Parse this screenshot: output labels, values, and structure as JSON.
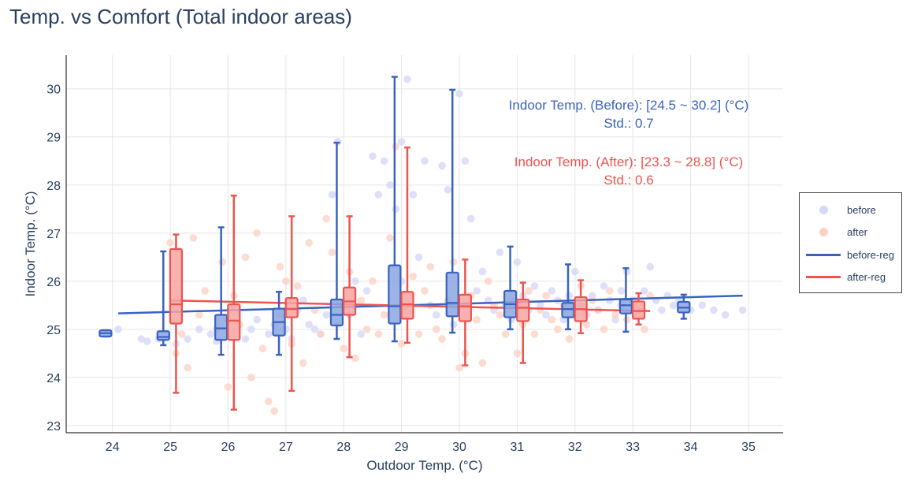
{
  "chart_data": {
    "type": "scatter",
    "title": "Temp. vs Comfort (Total indoor areas)",
    "xlabel": "Outdoor Temp. (°C)",
    "ylabel": "Indoor Temp. (°C)",
    "xlim": [
      23.2,
      35.6
    ],
    "ylim": [
      22.85,
      30.7
    ],
    "x_ticks": [
      24,
      25,
      26,
      27,
      28,
      29,
      30,
      31,
      32,
      33,
      34,
      35
    ],
    "y_ticks": [
      23,
      24,
      25,
      26,
      27,
      28,
      29,
      30
    ],
    "grid": true,
    "legend": {
      "placement": "right",
      "entries": [
        {
          "name": "before",
          "kind": "marker",
          "color": "#d6d8f7"
        },
        {
          "name": "after",
          "kind": "marker",
          "color": "#fbd2c4"
        },
        {
          "name": "before-reg",
          "kind": "line",
          "color": "#3a62bf"
        },
        {
          "name": "after-reg",
          "kind": "line",
          "color": "#ef5350"
        }
      ]
    },
    "annotations": [
      {
        "line1": "Indoor Temp. (Before): [24.5 ~ 30.2] (°C)",
        "line2": "Std.: 0.7",
        "color": "#3a62bf"
      },
      {
        "line1": "Indoor Temp. (After): [23.3 ~ 28.8] (°C)",
        "line2": "Std.: 0.6",
        "color": "#ef5350"
      }
    ],
    "series": [
      {
        "name": "before",
        "type": "scatter",
        "color": "#d6d8f7",
        "points": [
          [
            24.1,
            25.0
          ],
          [
            24.5,
            24.8
          ],
          [
            24.6,
            24.75
          ],
          [
            24.8,
            24.8
          ],
          [
            25.1,
            24.7
          ],
          [
            25.3,
            24.8
          ],
          [
            25.5,
            25.0
          ],
          [
            25.7,
            24.9
          ],
          [
            25.8,
            24.75
          ],
          [
            26.0,
            25.2
          ],
          [
            26.1,
            25.5
          ],
          [
            26.3,
            24.8
          ],
          [
            26.4,
            25.0
          ],
          [
            26.5,
            25.2
          ],
          [
            26.7,
            24.9
          ],
          [
            26.8,
            25.1
          ],
          [
            26.9,
            25.3
          ],
          [
            27.0,
            25.0
          ],
          [
            27.1,
            24.8
          ],
          [
            27.2,
            25.4
          ],
          [
            27.3,
            25.6
          ],
          [
            27.4,
            25.1
          ],
          [
            27.5,
            25.0
          ],
          [
            27.6,
            24.9
          ],
          [
            27.7,
            25.3
          ],
          [
            27.8,
            27.8
          ],
          [
            27.9,
            28.9
          ],
          [
            28.0,
            25.5
          ],
          [
            28.1,
            25.3
          ],
          [
            28.2,
            26.0
          ],
          [
            28.3,
            24.9
          ],
          [
            28.4,
            25.8
          ],
          [
            28.5,
            28.6
          ],
          [
            28.6,
            27.8
          ],
          [
            28.7,
            28.5
          ],
          [
            28.8,
            28.0
          ],
          [
            28.9,
            27.5
          ],
          [
            29.0,
            28.9
          ],
          [
            29.0,
            26.0
          ],
          [
            29.1,
            30.2
          ],
          [
            29.2,
            27.8
          ],
          [
            29.3,
            26.5
          ],
          [
            29.4,
            28.5
          ],
          [
            29.5,
            25.5
          ],
          [
            29.6,
            25.3
          ],
          [
            29.7,
            28.4
          ],
          [
            29.8,
            27.9
          ],
          [
            29.9,
            25.1
          ],
          [
            30.0,
            29.9
          ],
          [
            30.1,
            28.5
          ],
          [
            30.2,
            27.3
          ],
          [
            30.3,
            25.8
          ],
          [
            30.4,
            26.2
          ],
          [
            30.5,
            25.6
          ],
          [
            30.6,
            25.4
          ],
          [
            30.7,
            26.6
          ],
          [
            30.8,
            25.5
          ],
          [
            30.9,
            25.2
          ],
          [
            31.0,
            26.4
          ],
          [
            31.1,
            25.7
          ],
          [
            31.2,
            25.4
          ],
          [
            31.3,
            25.9
          ],
          [
            31.4,
            25.5
          ],
          [
            31.5,
            25.3
          ],
          [
            31.6,
            25.8
          ],
          [
            31.7,
            25.6
          ],
          [
            31.8,
            25.2
          ],
          [
            31.9,
            25.7
          ],
          [
            32.0,
            26.2
          ],
          [
            32.1,
            25.5
          ],
          [
            32.2,
            25.3
          ],
          [
            32.3,
            25.7
          ],
          [
            32.4,
            25.4
          ],
          [
            32.5,
            25.9
          ],
          [
            32.6,
            25.6
          ],
          [
            32.7,
            25.2
          ],
          [
            32.8,
            25.8
          ],
          [
            32.9,
            26.2
          ],
          [
            33.0,
            25.5
          ],
          [
            33.1,
            25.4
          ],
          [
            33.2,
            25.8
          ],
          [
            33.3,
            26.3
          ],
          [
            33.4,
            25.6
          ],
          [
            33.5,
            25.4
          ],
          [
            33.6,
            25.7
          ],
          [
            33.7,
            25.5
          ],
          [
            33.8,
            25.6
          ],
          [
            34.0,
            25.4
          ],
          [
            34.2,
            25.5
          ],
          [
            34.4,
            25.4
          ],
          [
            34.6,
            25.3
          ],
          [
            34.9,
            25.4
          ]
        ]
      },
      {
        "name": "after",
        "type": "scatter",
        "color": "#fbd2c4",
        "points": [
          [
            25.0,
            26.8
          ],
          [
            25.1,
            24.5
          ],
          [
            25.2,
            24.9
          ],
          [
            25.3,
            24.2
          ],
          [
            25.4,
            26.9
          ],
          [
            25.5,
            25.3
          ],
          [
            25.6,
            25.8
          ],
          [
            25.8,
            25.0
          ],
          [
            25.9,
            26.4
          ],
          [
            26.0,
            23.8
          ],
          [
            26.1,
            25.7
          ],
          [
            26.2,
            25.1
          ],
          [
            26.3,
            26.5
          ],
          [
            26.4,
            24.0
          ],
          [
            26.5,
            27.0
          ],
          [
            26.6,
            24.6
          ],
          [
            26.7,
            23.5
          ],
          [
            26.8,
            23.3
          ],
          [
            26.9,
            26.3
          ],
          [
            27.0,
            26.0
          ],
          [
            27.1,
            24.7
          ],
          [
            27.2,
            25.9
          ],
          [
            27.3,
            24.3
          ],
          [
            27.4,
            26.8
          ],
          [
            27.5,
            25.4
          ],
          [
            27.6,
            24.9
          ],
          [
            27.7,
            27.3
          ],
          [
            27.8,
            26.6
          ],
          [
            27.9,
            25.1
          ],
          [
            28.0,
            24.6
          ],
          [
            28.1,
            26.2
          ],
          [
            28.2,
            24.4
          ],
          [
            28.3,
            25.6
          ],
          [
            28.4,
            25.0
          ],
          [
            28.5,
            26.0
          ],
          [
            28.6,
            24.9
          ],
          [
            28.7,
            25.3
          ],
          [
            28.8,
            26.9
          ],
          [
            28.9,
            28.8
          ],
          [
            29.0,
            24.7
          ],
          [
            29.1,
            25.4
          ],
          [
            29.2,
            26.1
          ],
          [
            29.3,
            24.9
          ],
          [
            29.4,
            25.8
          ],
          [
            29.5,
            26.3
          ],
          [
            29.6,
            25.0
          ],
          [
            29.7,
            24.8
          ],
          [
            29.8,
            25.6
          ],
          [
            29.9,
            26.4
          ],
          [
            30.0,
            24.2
          ],
          [
            30.1,
            24.5
          ],
          [
            30.2,
            25.7
          ],
          [
            30.3,
            25.2
          ],
          [
            30.4,
            24.3
          ],
          [
            30.5,
            26.0
          ],
          [
            30.6,
            25.5
          ],
          [
            30.7,
            25.3
          ],
          [
            30.8,
            24.9
          ],
          [
            30.9,
            25.6
          ],
          [
            31.0,
            24.5
          ],
          [
            31.1,
            25.1
          ],
          [
            31.2,
            25.8
          ],
          [
            31.3,
            24.9
          ],
          [
            31.4,
            25.4
          ],
          [
            31.5,
            25.7
          ],
          [
            31.6,
            25.2
          ],
          [
            31.7,
            25.0
          ],
          [
            31.8,
            25.5
          ],
          [
            31.9,
            24.8
          ],
          [
            32.0,
            25.3
          ],
          [
            32.1,
            25.9
          ],
          [
            32.2,
            25.1
          ],
          [
            32.3,
            25.6
          ],
          [
            32.4,
            25.4
          ],
          [
            32.5,
            25.0
          ],
          [
            32.6,
            25.8
          ],
          [
            32.7,
            25.3
          ],
          [
            32.8,
            25.5
          ],
          [
            32.9,
            25.2
          ],
          [
            33.0,
            25.6
          ],
          [
            33.1,
            25.4
          ],
          [
            33.2,
            25.0
          ],
          [
            33.3,
            25.7
          ]
        ]
      },
      {
        "name": "before-reg",
        "type": "line",
        "color": "#3a62bf",
        "x": [
          24.1,
          34.9
        ],
        "y": [
          25.33,
          25.7
        ]
      },
      {
        "name": "after-reg",
        "type": "line",
        "color": "#ef5350",
        "x": [
          25.0,
          33.3
        ],
        "y": [
          25.6,
          25.38
        ]
      },
      {
        "name": "before-box",
        "type": "box",
        "color": "#3a62bf",
        "fill": "#8aa6e0",
        "offset": -0.12,
        "boxes": [
          {
            "x": 24,
            "min": 24.85,
            "q1": 24.85,
            "median": 24.92,
            "q3": 24.98,
            "max": 24.98
          },
          {
            "x": 25,
            "min": 24.67,
            "q1": 24.78,
            "median": 24.84,
            "q3": 24.96,
            "max": 26.62
          },
          {
            "x": 26,
            "min": 24.47,
            "q1": 24.78,
            "median": 25.02,
            "q3": 25.3,
            "max": 27.12
          },
          {
            "x": 27,
            "min": 24.47,
            "q1": 24.87,
            "median": 25.15,
            "q3": 25.43,
            "max": 25.78
          },
          {
            "x": 28,
            "min": 24.8,
            "q1": 25.08,
            "median": 25.3,
            "q3": 25.62,
            "max": 28.88
          },
          {
            "x": 29,
            "min": 24.75,
            "q1": 25.12,
            "median": 25.48,
            "q3": 26.33,
            "max": 30.25
          },
          {
            "x": 30,
            "min": 24.93,
            "q1": 25.27,
            "median": 25.55,
            "q3": 26.18,
            "max": 29.98
          },
          {
            "x": 31,
            "min": 25.0,
            "q1": 25.25,
            "median": 25.52,
            "q3": 25.8,
            "max": 26.72
          },
          {
            "x": 32,
            "min": 25.0,
            "q1": 25.25,
            "median": 25.42,
            "q3": 25.55,
            "max": 26.35
          },
          {
            "x": 33,
            "min": 24.95,
            "q1": 25.33,
            "median": 25.5,
            "q3": 25.62,
            "max": 26.27
          },
          {
            "x": 34,
            "min": 25.22,
            "q1": 25.35,
            "median": 25.45,
            "q3": 25.57,
            "max": 25.72
          }
        ]
      },
      {
        "name": "after-box",
        "type": "box",
        "color": "#ef5350",
        "fill": "#f6a4a2",
        "offset": 0.1,
        "boxes": [
          {
            "x": 25,
            "min": 23.68,
            "q1": 25.12,
            "median": 25.52,
            "q3": 26.67,
            "max": 26.97
          },
          {
            "x": 26,
            "min": 23.33,
            "q1": 24.78,
            "median": 25.18,
            "q3": 25.52,
            "max": 27.78
          },
          {
            "x": 27,
            "min": 23.72,
            "q1": 25.25,
            "median": 25.42,
            "q3": 25.65,
            "max": 27.35
          },
          {
            "x": 28,
            "min": 24.42,
            "q1": 25.3,
            "median": 25.58,
            "q3": 25.87,
            "max": 27.35
          },
          {
            "x": 29,
            "min": 24.72,
            "q1": 25.22,
            "median": 25.52,
            "q3": 25.78,
            "max": 28.78
          },
          {
            "x": 30,
            "min": 24.25,
            "q1": 25.17,
            "median": 25.48,
            "q3": 25.72,
            "max": 26.45
          },
          {
            "x": 31,
            "min": 24.3,
            "q1": 25.17,
            "median": 25.45,
            "q3": 25.62,
            "max": 25.97
          },
          {
            "x": 32,
            "min": 24.92,
            "q1": 25.17,
            "median": 25.42,
            "q3": 25.67,
            "max": 26.02
          },
          {
            "x": 33,
            "min": 25.1,
            "q1": 25.22,
            "median": 25.38,
            "q3": 25.58,
            "max": 25.75
          }
        ]
      }
    ]
  }
}
